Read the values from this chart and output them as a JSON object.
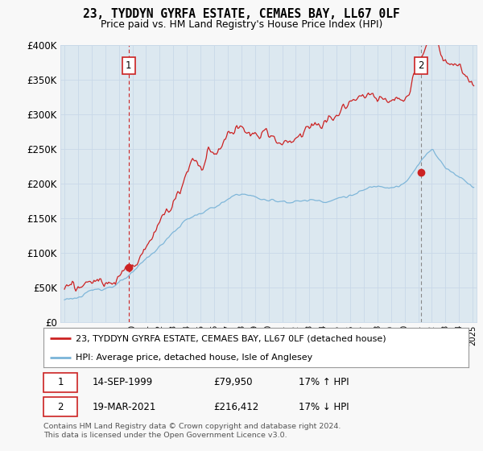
{
  "title": "23, TYDDYN GYRFA ESTATE, CEMAES BAY, LL67 0LF",
  "subtitle": "Price paid vs. HM Land Registry's House Price Index (HPI)",
  "legend_line1": "23, TYDDYN GYRFA ESTATE, CEMAES BAY, LL67 0LF (detached house)",
  "legend_line2": "HPI: Average price, detached house, Isle of Anglesey",
  "annotation1_date": "14-SEP-1999",
  "annotation1_price": "£79,950",
  "annotation1_hpi": "17% ↑ HPI",
  "annotation2_date": "19-MAR-2021",
  "annotation2_price": "£216,412",
  "annotation2_hpi": "17% ↓ HPI",
  "footer": "Contains HM Land Registry data © Crown copyright and database right 2024.\nThis data is licensed under the Open Government Licence v3.0.",
  "sale1_year": 1999.71,
  "sale1_price": 79950,
  "sale2_year": 2021.22,
  "sale2_price": 216412,
  "hpi_color": "#7ab4d8",
  "price_color": "#cc2222",
  "sale_marker_color": "#cc2222",
  "vline1_color": "#cc2222",
  "vline2_color": "#888888",
  "grid_color": "#c8d8e8",
  "background_color": "#dce8f0",
  "plot_bg_color": "#dce8f0",
  "legend_bg": "#ffffff",
  "ylim": [
    0,
    400000
  ],
  "xlim_start": 1994.7,
  "xlim_end": 2025.3
}
